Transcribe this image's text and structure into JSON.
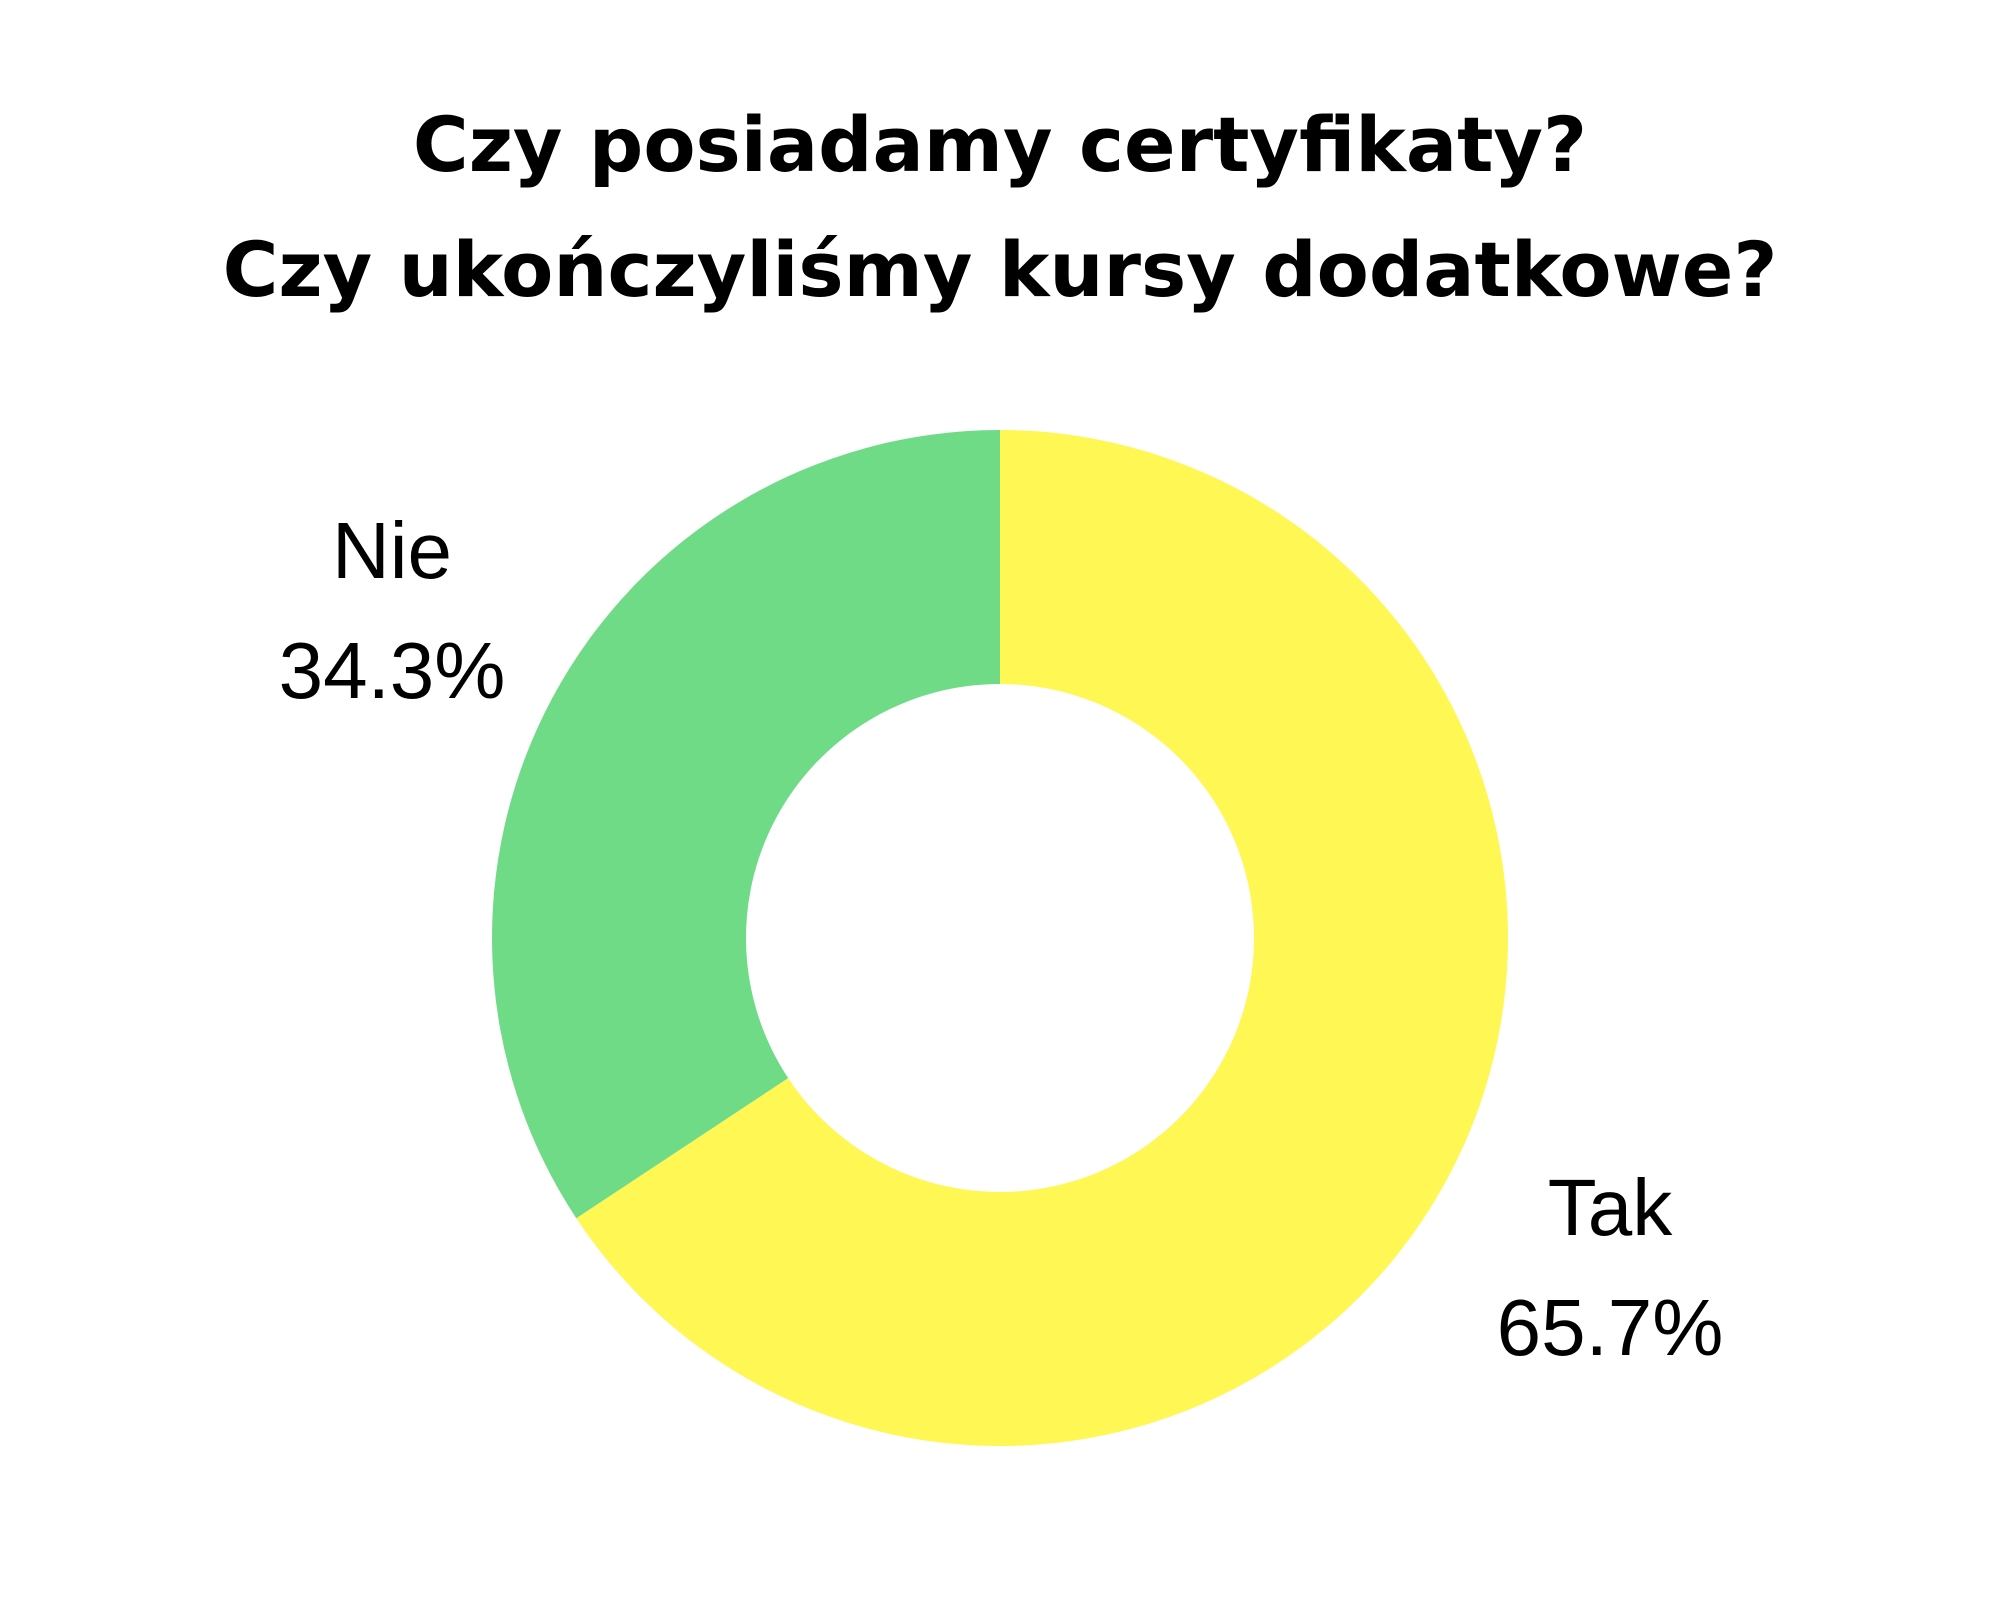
{
  "chart_data": {
    "type": "pie",
    "title": "Czy posiadamy certyfikaty?",
    "subtitle": "Czy ukończyliśmy kursy dodatkowe?",
    "donut": true,
    "categories": [
      "Tak",
      "Nie"
    ],
    "values": [
      65.7,
      34.3
    ],
    "value_labels": [
      "65.7%",
      "34.3%"
    ],
    "colors": [
      "#fff754",
      "#6fdb87"
    ],
    "legend": "none"
  }
}
